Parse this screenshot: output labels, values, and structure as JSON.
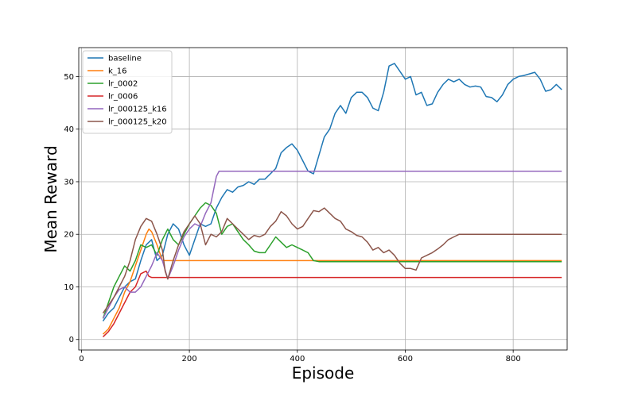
{
  "chart_data": {
    "type": "line",
    "title": "",
    "xlabel": "Episode",
    "ylabel": "Mean Reward",
    "xlim": [
      -5,
      900
    ],
    "ylim": [
      -2,
      55.5
    ],
    "xticks": [
      0,
      200,
      400,
      600,
      800
    ],
    "yticks": [
      0,
      10,
      20,
      30,
      40,
      50
    ],
    "grid": true,
    "legend_position": "top-left",
    "series": [
      {
        "name": "baseline",
        "color": "#1f77b4",
        "points": [
          [
            40,
            3.5
          ],
          [
            50,
            5
          ],
          [
            60,
            6
          ],
          [
            70,
            8
          ],
          [
            80,
            10
          ],
          [
            90,
            11
          ],
          [
            100,
            11.5
          ],
          [
            110,
            15
          ],
          [
            120,
            18
          ],
          [
            130,
            19
          ],
          [
            140,
            15
          ],
          [
            150,
            16
          ],
          [
            160,
            20
          ],
          [
            170,
            22
          ],
          [
            180,
            21
          ],
          [
            190,
            18
          ],
          [
            200,
            16
          ],
          [
            210,
            19
          ],
          [
            220,
            22
          ],
          [
            230,
            21.5
          ],
          [
            240,
            22
          ],
          [
            250,
            25
          ],
          [
            260,
            27
          ],
          [
            270,
            28.5
          ],
          [
            280,
            28
          ],
          [
            290,
            29
          ],
          [
            300,
            29.3
          ],
          [
            310,
            30
          ],
          [
            320,
            29.5
          ],
          [
            330,
            30.5
          ],
          [
            340,
            30.5
          ],
          [
            350,
            31.5
          ],
          [
            360,
            32.5
          ],
          [
            370,
            35.5
          ],
          [
            380,
            36.5
          ],
          [
            390,
            37.2
          ],
          [
            400,
            36
          ],
          [
            410,
            34
          ],
          [
            420,
            32
          ],
          [
            430,
            31.5
          ],
          [
            440,
            35
          ],
          [
            450,
            38.5
          ],
          [
            460,
            40
          ],
          [
            470,
            43
          ],
          [
            480,
            44.5
          ],
          [
            490,
            43
          ],
          [
            500,
            46
          ],
          [
            510,
            47
          ],
          [
            520,
            47
          ],
          [
            530,
            46
          ],
          [
            540,
            44
          ],
          [
            550,
            43.5
          ],
          [
            560,
            47
          ],
          [
            570,
            52
          ],
          [
            580,
            52.5
          ],
          [
            590,
            51
          ],
          [
            600,
            49.5
          ],
          [
            610,
            50
          ],
          [
            620,
            46.5
          ],
          [
            630,
            47
          ],
          [
            640,
            44.5
          ],
          [
            650,
            44.8
          ],
          [
            660,
            47
          ],
          [
            670,
            48.5
          ],
          [
            680,
            49.5
          ],
          [
            690,
            49
          ],
          [
            700,
            49.5
          ],
          [
            710,
            48.5
          ],
          [
            720,
            48
          ],
          [
            730,
            48.2
          ],
          [
            740,
            48
          ],
          [
            750,
            46.2
          ],
          [
            760,
            46
          ],
          [
            770,
            45.2
          ],
          [
            780,
            46.5
          ],
          [
            790,
            48.5
          ],
          [
            800,
            49.5
          ],
          [
            810,
            50
          ],
          [
            820,
            50.2
          ],
          [
            830,
            50.5
          ],
          [
            840,
            50.8
          ],
          [
            850,
            49.5
          ],
          [
            860,
            47.2
          ],
          [
            870,
            47.5
          ],
          [
            880,
            48.5
          ],
          [
            890,
            47.5
          ]
        ]
      },
      {
        "name": "k_16",
        "color": "#ff7f0e",
        "points": [
          [
            40,
            1
          ],
          [
            50,
            2
          ],
          [
            60,
            4
          ],
          [
            70,
            6
          ],
          [
            80,
            9
          ],
          [
            90,
            11
          ],
          [
            100,
            14
          ],
          [
            110,
            17
          ],
          [
            120,
            20
          ],
          [
            125,
            21
          ],
          [
            130,
            20.5
          ],
          [
            140,
            18
          ],
          [
            150,
            15
          ],
          [
            160,
            15
          ],
          [
            400,
            15
          ],
          [
            600,
            15
          ],
          [
            890,
            15
          ]
        ]
      },
      {
        "name": "lr_0002",
        "color": "#2ca02c",
        "points": [
          [
            40,
            4
          ],
          [
            50,
            7
          ],
          [
            60,
            10
          ],
          [
            70,
            12
          ],
          [
            80,
            14
          ],
          [
            90,
            13
          ],
          [
            100,
            15
          ],
          [
            110,
            18
          ],
          [
            120,
            17.5
          ],
          [
            130,
            18
          ],
          [
            140,
            16
          ],
          [
            150,
            19
          ],
          [
            160,
            21
          ],
          [
            170,
            19
          ],
          [
            180,
            18
          ],
          [
            190,
            20
          ],
          [
            200,
            22
          ],
          [
            210,
            23.5
          ],
          [
            220,
            25
          ],
          [
            230,
            26
          ],
          [
            240,
            25.5
          ],
          [
            250,
            24
          ],
          [
            260,
            20
          ],
          [
            270,
            21.5
          ],
          [
            280,
            22
          ],
          [
            290,
            20.5
          ],
          [
            300,
            19
          ],
          [
            310,
            18
          ],
          [
            320,
            16.8
          ],
          [
            330,
            16.5
          ],
          [
            340,
            16.5
          ],
          [
            350,
            18
          ],
          [
            360,
            19.5
          ],
          [
            370,
            18.5
          ],
          [
            380,
            17.5
          ],
          [
            390,
            18
          ],
          [
            400,
            17.5
          ],
          [
            410,
            17
          ],
          [
            420,
            16.5
          ],
          [
            430,
            15
          ],
          [
            440,
            14.8
          ],
          [
            500,
            14.8
          ],
          [
            600,
            14.8
          ],
          [
            700,
            14.8
          ],
          [
            890,
            14.8
          ]
        ]
      },
      {
        "name": "lr_0006",
        "color": "#d62728",
        "points": [
          [
            40,
            0.5
          ],
          [
            50,
            1.5
          ],
          [
            60,
            3
          ],
          [
            70,
            5
          ],
          [
            80,
            7
          ],
          [
            90,
            9
          ],
          [
            100,
            10
          ],
          [
            110,
            12.5
          ],
          [
            120,
            13
          ],
          [
            125,
            12
          ],
          [
            130,
            11.8
          ],
          [
            200,
            11.8
          ],
          [
            400,
            11.8
          ],
          [
            600,
            11.8
          ],
          [
            890,
            11.8
          ]
        ]
      },
      {
        "name": "lr_000125_k16",
        "color": "#9467bd",
        "points": [
          [
            40,
            4
          ],
          [
            50,
            6
          ],
          [
            60,
            8
          ],
          [
            70,
            9.5
          ],
          [
            80,
            10
          ],
          [
            90,
            9
          ],
          [
            100,
            9
          ],
          [
            110,
            10
          ],
          [
            120,
            12
          ],
          [
            130,
            14
          ],
          [
            140,
            16.5
          ],
          [
            150,
            15
          ],
          [
            160,
            11.5
          ],
          [
            170,
            14
          ],
          [
            180,
            17
          ],
          [
            190,
            19.5
          ],
          [
            200,
            21
          ],
          [
            210,
            22
          ],
          [
            220,
            21.5
          ],
          [
            230,
            24
          ],
          [
            240,
            26
          ],
          [
            250,
            31
          ],
          [
            255,
            32
          ],
          [
            300,
            32
          ],
          [
            400,
            32
          ],
          [
            600,
            32
          ],
          [
            890,
            32
          ]
        ]
      },
      {
        "name": "lr_000125_k20",
        "color": "#8c564b",
        "points": [
          [
            40,
            5
          ],
          [
            50,
            6.5
          ],
          [
            60,
            8
          ],
          [
            70,
            10
          ],
          [
            80,
            12
          ],
          [
            90,
            15
          ],
          [
            100,
            19
          ],
          [
            110,
            21.5
          ],
          [
            120,
            23
          ],
          [
            130,
            22.5
          ],
          [
            140,
            20
          ],
          [
            150,
            17
          ],
          [
            155,
            13
          ],
          [
            160,
            11.5
          ],
          [
            170,
            15
          ],
          [
            180,
            18
          ],
          [
            190,
            20.5
          ],
          [
            200,
            22
          ],
          [
            210,
            23.5
          ],
          [
            220,
            22
          ],
          [
            230,
            18
          ],
          [
            240,
            20
          ],
          [
            250,
            19.5
          ],
          [
            260,
            20.5
          ],
          [
            270,
            23
          ],
          [
            280,
            22
          ],
          [
            290,
            21
          ],
          [
            300,
            20
          ],
          [
            310,
            19
          ],
          [
            320,
            19.8
          ],
          [
            330,
            19.5
          ],
          [
            340,
            20
          ],
          [
            350,
            21.5
          ],
          [
            360,
            22.5
          ],
          [
            370,
            24.3
          ],
          [
            380,
            23.5
          ],
          [
            390,
            22
          ],
          [
            400,
            21
          ],
          [
            410,
            21.5
          ],
          [
            420,
            23
          ],
          [
            430,
            24.5
          ],
          [
            440,
            24.3
          ],
          [
            450,
            25
          ],
          [
            460,
            24
          ],
          [
            470,
            23
          ],
          [
            480,
            22.5
          ],
          [
            490,
            21
          ],
          [
            500,
            20.5
          ],
          [
            510,
            19.8
          ],
          [
            520,
            19.5
          ],
          [
            530,
            18.5
          ],
          [
            540,
            17
          ],
          [
            550,
            17.5
          ],
          [
            560,
            16.5
          ],
          [
            570,
            17
          ],
          [
            580,
            16
          ],
          [
            590,
            14.5
          ],
          [
            600,
            13.5
          ],
          [
            610,
            13.5
          ],
          [
            620,
            13.2
          ],
          [
            630,
            15.5
          ],
          [
            640,
            16
          ],
          [
            650,
            16.5
          ],
          [
            660,
            17.2
          ],
          [
            670,
            18
          ],
          [
            680,
            19
          ],
          [
            690,
            19.5
          ],
          [
            700,
            20
          ],
          [
            800,
            20
          ],
          [
            890,
            20
          ]
        ]
      }
    ]
  }
}
